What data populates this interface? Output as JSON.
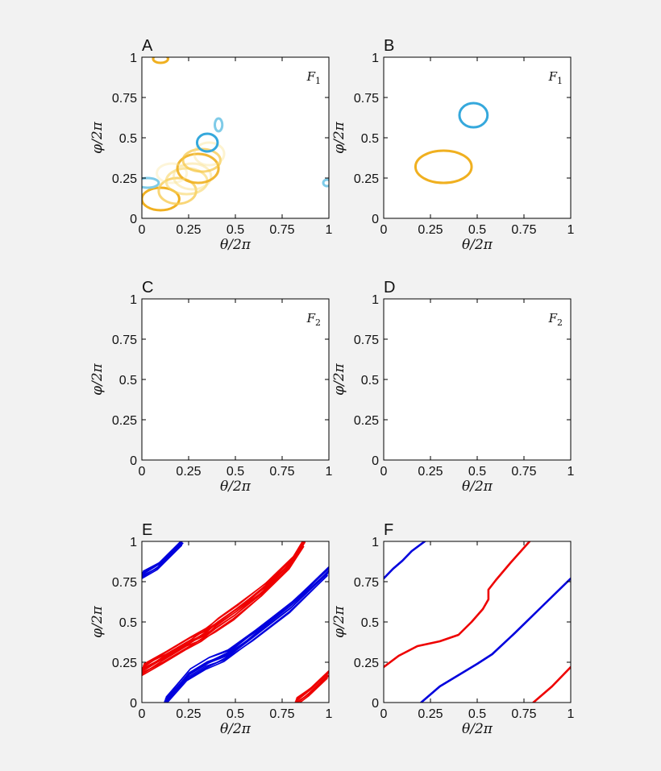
{
  "chart_data": [
    {
      "panel": "A",
      "type": "scatter",
      "annotation": "F",
      "annotation_sub": "1",
      "xlabel": "θ/2π",
      "ylabel": "φ/2π",
      "xlim": [
        0,
        1
      ],
      "ylim": [
        0,
        1
      ],
      "ticks": [
        "0",
        "0.25",
        "0.5",
        "0.75",
        "1"
      ],
      "ellipses": [
        {
          "cx": 0.1,
          "cy": 0.12,
          "rx": 0.1,
          "ry": 0.07,
          "color": "#f0b020",
          "opacity": 1.0
        },
        {
          "cx": 0.19,
          "cy": 0.17,
          "rx": 0.1,
          "ry": 0.08,
          "color": "#f7cc55",
          "opacity": 0.8
        },
        {
          "cx": 0.24,
          "cy": 0.23,
          "rx": 0.11,
          "ry": 0.08,
          "color": "#f8d566",
          "opacity": 0.6
        },
        {
          "cx": 0.27,
          "cy": 0.26,
          "rx": 0.1,
          "ry": 0.08,
          "color": "#fae08a",
          "opacity": 0.5
        },
        {
          "cx": 0.3,
          "cy": 0.31,
          "rx": 0.11,
          "ry": 0.09,
          "color": "#f0b020",
          "opacity": 0.9
        },
        {
          "cx": 0.32,
          "cy": 0.36,
          "rx": 0.1,
          "ry": 0.07,
          "color": "#f5c440",
          "opacity": 0.7
        },
        {
          "cx": 0.36,
          "cy": 0.4,
          "rx": 0.08,
          "ry": 0.07,
          "color": "#fae08a",
          "opacity": 0.4
        },
        {
          "cx": 0.16,
          "cy": 0.28,
          "rx": 0.08,
          "ry": 0.06,
          "color": "#fbe6a0",
          "opacity": 0.4
        },
        {
          "cx": 0.1,
          "cy": 0.99,
          "rx": 0.04,
          "ry": 0.025,
          "color": "#f0b020",
          "opacity": 1.0
        },
        {
          "cx": 0.35,
          "cy": 0.47,
          "rx": 0.055,
          "ry": 0.055,
          "color": "#35a8dc",
          "opacity": 1.0
        },
        {
          "cx": 0.41,
          "cy": 0.58,
          "rx": 0.02,
          "ry": 0.04,
          "color": "#7fcbe8",
          "opacity": 1.0
        },
        {
          "cx": 0.03,
          "cy": 0.22,
          "rx": 0.06,
          "ry": 0.03,
          "color": "#7fcbe8",
          "opacity": 1.0
        },
        {
          "cx": 0.99,
          "cy": 0.22,
          "rx": 0.02,
          "ry": 0.02,
          "color": "#7fcbe8",
          "opacity": 1.0
        }
      ]
    },
    {
      "panel": "B",
      "type": "scatter",
      "annotation": "F",
      "annotation_sub": "1",
      "xlabel": "θ/2π",
      "ylabel": "φ/2π",
      "xlim": [
        0,
        1
      ],
      "ylim": [
        0,
        1
      ],
      "ticks": [
        "0",
        "0.25",
        "0.5",
        "0.75",
        "1"
      ],
      "ellipses": [
        {
          "cx": 0.32,
          "cy": 0.32,
          "rx": 0.15,
          "ry": 0.1,
          "color": "#f0b020",
          "opacity": 1.0
        },
        {
          "cx": 0.48,
          "cy": 0.64,
          "rx": 0.075,
          "ry": 0.075,
          "color": "#35a8dc",
          "opacity": 1.0
        }
      ]
    },
    {
      "panel": "C",
      "type": "scatter",
      "annotation": "F",
      "annotation_sub": "2",
      "xlabel": "θ/2π",
      "ylabel": "φ/2π",
      "xlim": [
        0,
        1
      ],
      "ylim": [
        0,
        1
      ],
      "ticks": [
        "0",
        "0.25",
        "0.5",
        "0.75",
        "1"
      ],
      "ellipses": []
    },
    {
      "panel": "D",
      "type": "scatter",
      "annotation": "F",
      "annotation_sub": "2",
      "xlabel": "θ/2π",
      "ylabel": "φ/2π",
      "xlim": [
        0,
        1
      ],
      "ylim": [
        0,
        1
      ],
      "ticks": [
        "0",
        "0.25",
        "0.5",
        "0.75",
        "1"
      ],
      "ellipses": []
    },
    {
      "panel": "E",
      "type": "line",
      "xlabel": "θ/2π",
      "ylabel": "φ/2π",
      "xlim": [
        0,
        1
      ],
      "ylim": [
        0,
        1
      ],
      "ticks": [
        "0",
        "0.25",
        "0.5",
        "0.75",
        "1"
      ],
      "series": [
        {
          "color": "#0000dd",
          "x": [
            0.0,
            0.09,
            0.22
          ],
          "y": [
            0.79,
            0.85,
            1.0
          ],
          "bundle": 8,
          "spread": 0.025
        },
        {
          "color": "#0000dd",
          "x": [
            0.12,
            0.25,
            0.35,
            0.45,
            0.6,
            0.8,
            1.0
          ],
          "y": [
            0.0,
            0.17,
            0.24,
            0.29,
            0.42,
            0.6,
            0.82
          ],
          "bundle": 10,
          "spread": 0.035
        },
        {
          "color": "#ee0000",
          "x": [
            0.0,
            0.12,
            0.25,
            0.33,
            0.4,
            0.5,
            0.65,
            0.8,
            0.87
          ],
          "y": [
            0.2,
            0.28,
            0.37,
            0.42,
            0.48,
            0.56,
            0.7,
            0.87,
            1.0
          ],
          "bundle": 12,
          "spread": 0.04
        },
        {
          "color": "#ee0000",
          "x": [
            0.82,
            0.9,
            1.0
          ],
          "y": [
            0.0,
            0.07,
            0.18
          ],
          "bundle": 8,
          "spread": 0.03
        }
      ]
    },
    {
      "panel": "F",
      "type": "line",
      "xlabel": "θ/2π",
      "ylabel": "φ/2π",
      "xlim": [
        0,
        1
      ],
      "ylim": [
        0,
        1
      ],
      "ticks": [
        "0",
        "0.25",
        "0.5",
        "0.75",
        "1"
      ],
      "series": [
        {
          "color": "#0000dd",
          "x": [
            0.0,
            0.05,
            0.1,
            0.15,
            0.22
          ],
          "y": [
            0.77,
            0.83,
            0.88,
            0.94,
            1.0
          ],
          "bundle": 1
        },
        {
          "color": "#0000dd",
          "x": [
            0.2,
            0.3,
            0.4,
            0.5,
            0.58,
            0.7,
            0.85,
            1.0
          ],
          "y": [
            0.0,
            0.1,
            0.17,
            0.24,
            0.3,
            0.43,
            0.6,
            0.77
          ],
          "bundle": 1
        },
        {
          "color": "#ee0000",
          "x": [
            0.0,
            0.08,
            0.18,
            0.3,
            0.4,
            0.47,
            0.53,
            0.56,
            0.56,
            0.6,
            0.68,
            0.78
          ],
          "y": [
            0.22,
            0.29,
            0.35,
            0.38,
            0.42,
            0.5,
            0.58,
            0.64,
            0.7,
            0.76,
            0.87,
            1.0
          ],
          "bundle": 1
        },
        {
          "color": "#ee0000",
          "x": [
            0.8,
            0.9,
            1.0
          ],
          "y": [
            0.0,
            0.1,
            0.22
          ],
          "bundle": 1
        }
      ]
    }
  ]
}
